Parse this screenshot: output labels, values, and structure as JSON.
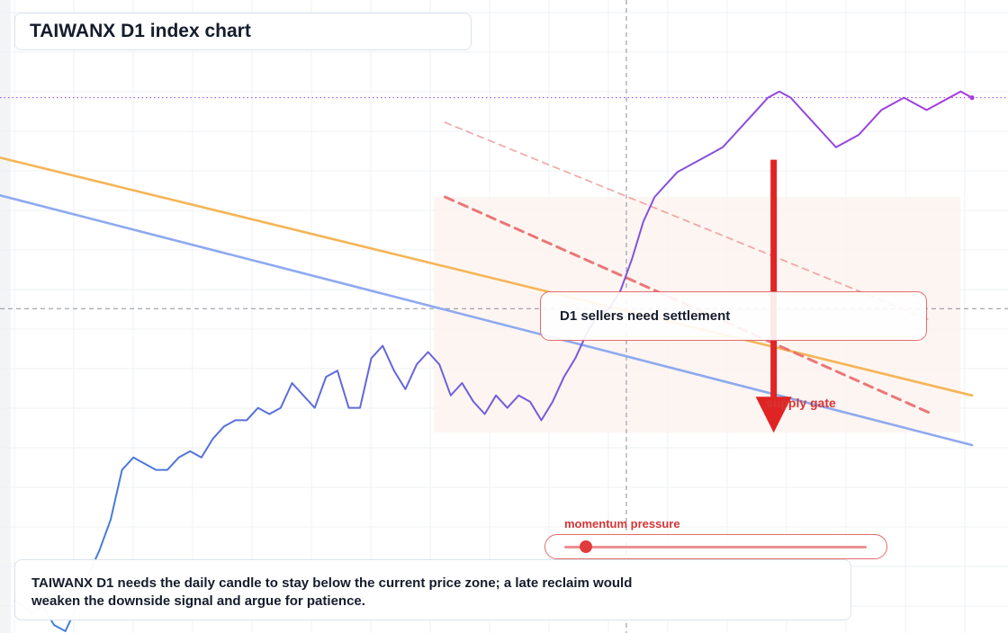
{
  "title": "TAIWANX D1 index chart",
  "callout_text": "D1 sellers need settlement",
  "zone_label": "supply gate",
  "meter": {
    "label": "momentum pressure",
    "level": 0.07
  },
  "note": "TAIWANX D1 needs the daily candle to stay below the current price zone; a late reclaim would weaken the downside signal and argue for patience.",
  "colors": {
    "price_low": "#3f82d8",
    "price_high": "#a53ae0",
    "orange_ma": "#f5b556",
    "blue_ma": "#8ea9ef",
    "resistance": "#e86a6a",
    "arrow": "#e02424",
    "zone_fill": "#fdf3ef"
  },
  "chart_data": {
    "type": "line",
    "title": "TAIWANX D1 index chart",
    "xlabel": "",
    "ylabel": "",
    "x_range": [
      0,
      169
    ],
    "y_range": [
      0,
      100
    ],
    "grid": true,
    "crosshair": {
      "x": 108,
      "y": 52
    },
    "last_price_marker": 86,
    "price_series": [
      {
        "x": 0,
        "y": 5
      },
      {
        "x": 3,
        "y": 3
      },
      {
        "x": 5,
        "y": 4
      },
      {
        "x": 7,
        "y": 1
      },
      {
        "x": 9,
        "y": 0
      },
      {
        "x": 11,
        "y": 4
      },
      {
        "x": 13,
        "y": 9
      },
      {
        "x": 15,
        "y": 13
      },
      {
        "x": 17,
        "y": 18
      },
      {
        "x": 19,
        "y": 26
      },
      {
        "x": 21,
        "y": 28
      },
      {
        "x": 23,
        "y": 27
      },
      {
        "x": 25,
        "y": 26
      },
      {
        "x": 27,
        "y": 26
      },
      {
        "x": 29,
        "y": 28
      },
      {
        "x": 31,
        "y": 29
      },
      {
        "x": 33,
        "y": 28
      },
      {
        "x": 35,
        "y": 31
      },
      {
        "x": 37,
        "y": 33
      },
      {
        "x": 39,
        "y": 34
      },
      {
        "x": 41,
        "y": 34
      },
      {
        "x": 43,
        "y": 36
      },
      {
        "x": 45,
        "y": 35
      },
      {
        "x": 47,
        "y": 36
      },
      {
        "x": 49,
        "y": 40
      },
      {
        "x": 51,
        "y": 38
      },
      {
        "x": 53,
        "y": 36
      },
      {
        "x": 55,
        "y": 41
      },
      {
        "x": 57,
        "y": 42
      },
      {
        "x": 59,
        "y": 36
      },
      {
        "x": 61,
        "y": 36
      },
      {
        "x": 63,
        "y": 44
      },
      {
        "x": 65,
        "y": 46
      },
      {
        "x": 67,
        "y": 42
      },
      {
        "x": 69,
        "y": 39
      },
      {
        "x": 71,
        "y": 43
      },
      {
        "x": 73,
        "y": 45
      },
      {
        "x": 75,
        "y": 43
      },
      {
        "x": 77,
        "y": 38
      },
      {
        "x": 79,
        "y": 40
      },
      {
        "x": 81,
        "y": 37
      },
      {
        "x": 83,
        "y": 35
      },
      {
        "x": 85,
        "y": 38
      },
      {
        "x": 87,
        "y": 36
      },
      {
        "x": 89,
        "y": 38
      },
      {
        "x": 91,
        "y": 37
      },
      {
        "x": 93,
        "y": 34
      },
      {
        "x": 95,
        "y": 37
      },
      {
        "x": 97,
        "y": 41
      },
      {
        "x": 99,
        "y": 44
      },
      {
        "x": 101,
        "y": 48
      },
      {
        "x": 103,
        "y": 51
      },
      {
        "x": 105,
        "y": 52
      },
      {
        "x": 107,
        "y": 55
      },
      {
        "x": 109,
        "y": 60
      },
      {
        "x": 111,
        "y": 66
      },
      {
        "x": 113,
        "y": 70
      },
      {
        "x": 115,
        "y": 72
      },
      {
        "x": 117,
        "y": 74
      },
      {
        "x": 119,
        "y": 75
      },
      {
        "x": 121,
        "y": 76
      },
      {
        "x": 123,
        "y": 77
      },
      {
        "x": 125,
        "y": 78
      },
      {
        "x": 127,
        "y": 80
      },
      {
        "x": 129,
        "y": 82
      },
      {
        "x": 131,
        "y": 84
      },
      {
        "x": 133,
        "y": 86
      },
      {
        "x": 135,
        "y": 87
      },
      {
        "x": 137,
        "y": 86
      },
      {
        "x": 139,
        "y": 84
      },
      {
        "x": 141,
        "y": 82
      },
      {
        "x": 143,
        "y": 80
      },
      {
        "x": 145,
        "y": 78
      },
      {
        "x": 147,
        "y": 79
      },
      {
        "x": 149,
        "y": 80
      },
      {
        "x": 151,
        "y": 82
      },
      {
        "x": 153,
        "y": 84
      },
      {
        "x": 155,
        "y": 85
      },
      {
        "x": 157,
        "y": 86
      },
      {
        "x": 159,
        "y": 85
      },
      {
        "x": 161,
        "y": 84
      },
      {
        "x": 163,
        "y": 85
      },
      {
        "x": 165,
        "y": 86
      },
      {
        "x": 167,
        "y": 87
      },
      {
        "x": 169,
        "y": 86
      }
    ],
    "ma_orange": [
      {
        "x": -10,
        "y": 78
      },
      {
        "x": 169,
        "y": 38
      }
    ],
    "ma_blue": [
      {
        "x": -10,
        "y": 72
      },
      {
        "x": 169,
        "y": 30
      }
    ],
    "resistance_upper": [
      {
        "x": 76,
        "y": 82
      },
      {
        "x": 162,
        "y": 50
      }
    ],
    "resistance_lower": [
      {
        "x": 76,
        "y": 70
      },
      {
        "x": 162,
        "y": 35
      }
    ],
    "supply_zone": {
      "x": [
        74,
        167
      ],
      "y": [
        32,
        70
      ]
    },
    "arrow": {
      "x": 134,
      "y_from": 76,
      "y_to": 32
    }
  }
}
